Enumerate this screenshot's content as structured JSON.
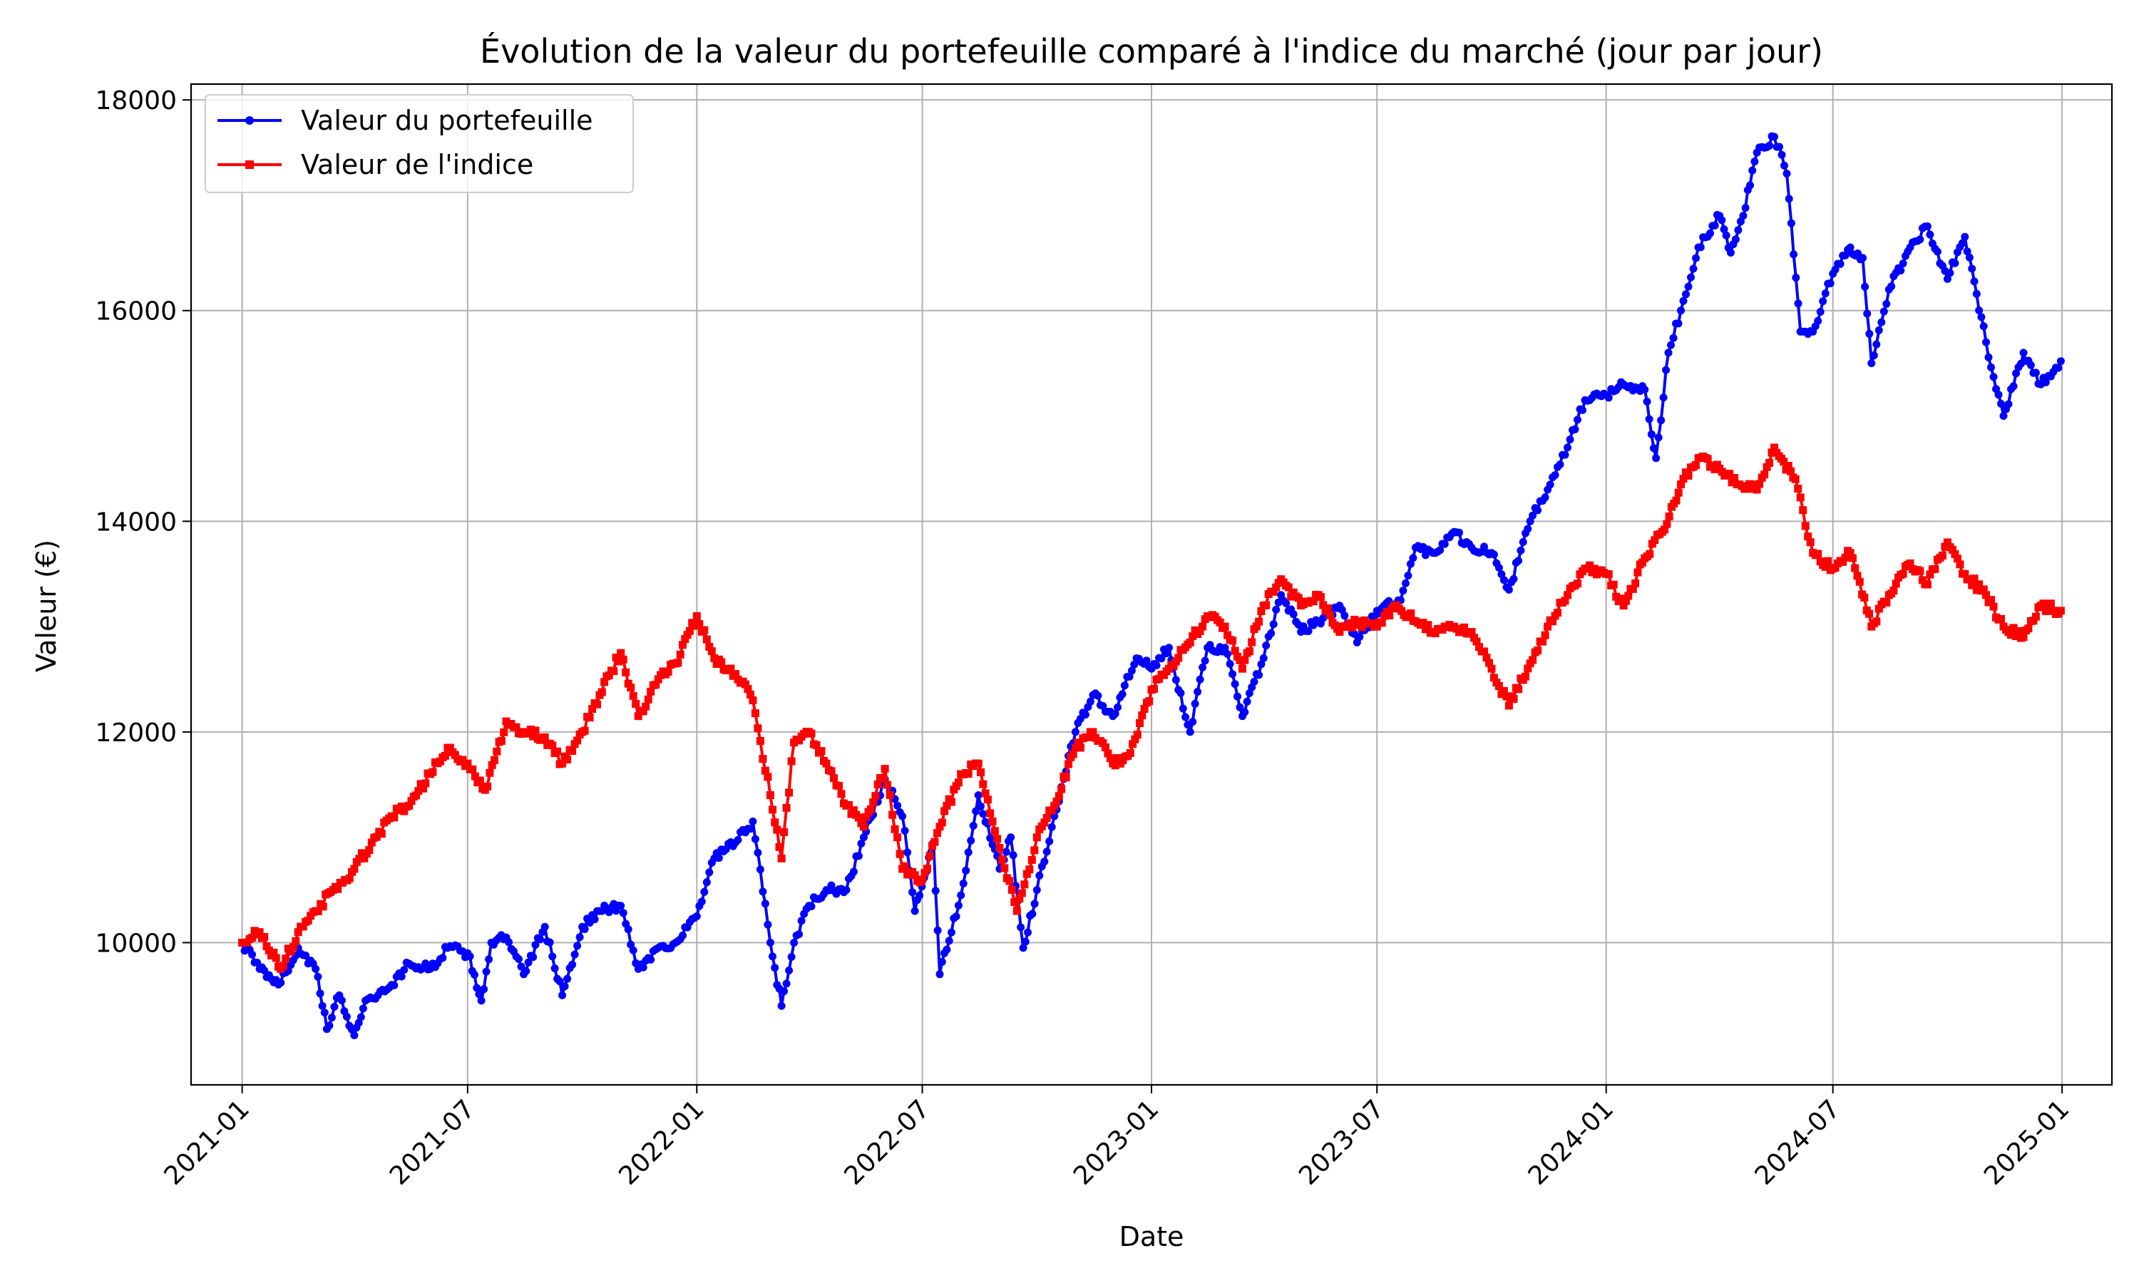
{
  "chart_data": {
    "type": "line",
    "title": "Évolution de la valeur du portefeuille comparé à l'indice du marché (jour par jour)",
    "xlabel": "Date",
    "ylabel": "Valeur (€)",
    "xlim": [
      "2020-11-21",
      "2025-02-10"
    ],
    "ylim": [
      8650,
      18150
    ],
    "grid": true,
    "legend_position": "top-left",
    "x_ticks": [
      "2021-01",
      "2021-07",
      "2022-01",
      "2022-07",
      "2023-01",
      "2023-07",
      "2024-01",
      "2024-07",
      "2025-01"
    ],
    "y_ticks": [
      10000,
      12000,
      14000,
      16000,
      18000
    ],
    "series": [
      {
        "name": "Valeur du portefeuille",
        "color": "#0000ff",
        "marker": "circle",
        "points": [
          [
            "2021-01-01",
            10000
          ],
          [
            "2021-01-15",
            9750
          ],
          [
            "2021-02-01",
            9620
          ],
          [
            "2021-02-15",
            9950
          ],
          [
            "2021-03-01",
            9750
          ],
          [
            "2021-03-10",
            9180
          ],
          [
            "2021-03-20",
            9500
          ],
          [
            "2021-04-01",
            9120
          ],
          [
            "2021-04-10",
            9450
          ],
          [
            "2021-04-20",
            9500
          ],
          [
            "2021-05-01",
            9600
          ],
          [
            "2021-05-15",
            9800
          ],
          [
            "2021-06-01",
            9750
          ],
          [
            "2021-06-15",
            9950
          ],
          [
            "2021-07-01",
            9900
          ],
          [
            "2021-07-12",
            9450
          ],
          [
            "2021-07-20",
            10000
          ],
          [
            "2021-08-01",
            10050
          ],
          [
            "2021-08-15",
            9700
          ],
          [
            "2021-09-01",
            10150
          ],
          [
            "2021-09-15",
            9500
          ],
          [
            "2021-10-01",
            10150
          ],
          [
            "2021-10-15",
            10300
          ],
          [
            "2021-11-01",
            10350
          ],
          [
            "2021-11-15",
            9750
          ],
          [
            "2021-12-01",
            9950
          ],
          [
            "2021-12-15",
            10000
          ],
          [
            "2022-01-01",
            10250
          ],
          [
            "2022-01-15",
            10800
          ],
          [
            "2022-02-01",
            10950
          ],
          [
            "2022-02-15",
            11150
          ],
          [
            "2022-03-01",
            10000
          ],
          [
            "2022-03-10",
            9400
          ],
          [
            "2022-03-20",
            10000
          ],
          [
            "2022-04-01",
            10350
          ],
          [
            "2022-04-15",
            10500
          ],
          [
            "2022-05-01",
            10500
          ],
          [
            "2022-05-15",
            11000
          ],
          [
            "2022-06-01",
            11550
          ],
          [
            "2022-06-15",
            11200
          ],
          [
            "2022-06-25",
            10300
          ],
          [
            "2022-07-10",
            10950
          ],
          [
            "2022-07-15",
            9700
          ],
          [
            "2022-08-01",
            10450
          ],
          [
            "2022-08-15",
            11400
          ],
          [
            "2022-09-01",
            10700
          ],
          [
            "2022-09-10",
            11000
          ],
          [
            "2022-09-20",
            9950
          ],
          [
            "2022-10-01",
            10500
          ],
          [
            "2022-10-15",
            11200
          ],
          [
            "2022-11-01",
            12000
          ],
          [
            "2022-11-15",
            12350
          ],
          [
            "2022-12-01",
            12150
          ],
          [
            "2022-12-20",
            12700
          ],
          [
            "2023-01-01",
            12600
          ],
          [
            "2023-01-15",
            12800
          ],
          [
            "2023-02-01",
            12000
          ],
          [
            "2023-02-15",
            12800
          ],
          [
            "2023-03-01",
            12800
          ],
          [
            "2023-03-15",
            12150
          ],
          [
            "2023-04-01",
            12700
          ],
          [
            "2023-04-15",
            13300
          ],
          [
            "2023-05-01",
            12950
          ],
          [
            "2023-05-15",
            13050
          ],
          [
            "2023-06-01",
            13200
          ],
          [
            "2023-06-15",
            12850
          ],
          [
            "2023-07-01",
            13150
          ],
          [
            "2023-07-20",
            13250
          ],
          [
            "2023-08-01",
            13750
          ],
          [
            "2023-08-15",
            13700
          ],
          [
            "2023-09-01",
            13900
          ],
          [
            "2023-09-15",
            13750
          ],
          [
            "2023-10-01",
            13700
          ],
          [
            "2023-10-15",
            13350
          ],
          [
            "2023-11-01",
            14000
          ],
          [
            "2023-11-15",
            14300
          ],
          [
            "2023-12-01",
            14700
          ],
          [
            "2023-12-15",
            15150
          ],
          [
            "2024-01-01",
            15200
          ],
          [
            "2024-01-15",
            15300
          ],
          [
            "2024-02-01",
            15250
          ],
          [
            "2024-02-10",
            14600
          ],
          [
            "2024-02-20",
            15600
          ],
          [
            "2024-03-01",
            16000
          ],
          [
            "2024-03-15",
            16600
          ],
          [
            "2024-04-01",
            16900
          ],
          [
            "2024-04-10",
            16550
          ],
          [
            "2024-04-20",
            16900
          ],
          [
            "2024-05-01",
            17500
          ],
          [
            "2024-05-15",
            17650
          ],
          [
            "2024-05-25",
            17300
          ],
          [
            "2024-06-05",
            15800
          ],
          [
            "2024-06-15",
            15800
          ],
          [
            "2024-07-01",
            16350
          ],
          [
            "2024-07-15",
            16600
          ],
          [
            "2024-07-25",
            16500
          ],
          [
            "2024-08-01",
            15500
          ],
          [
            "2024-08-15",
            16200
          ],
          [
            "2024-09-01",
            16600
          ],
          [
            "2024-09-15",
            16800
          ],
          [
            "2024-10-01",
            16300
          ],
          [
            "2024-10-15",
            16700
          ],
          [
            "2024-11-01",
            15700
          ],
          [
            "2024-11-15",
            15000
          ],
          [
            "2024-12-01",
            15600
          ],
          [
            "2024-12-15",
            15300
          ],
          [
            "2024-12-31",
            15520
          ]
        ]
      },
      {
        "name": "Valeur de l'indice",
        "color": "#ff0000",
        "marker": "square",
        "points": [
          [
            "2021-01-01",
            10000
          ],
          [
            "2021-01-15",
            10100
          ],
          [
            "2021-02-01",
            9750
          ],
          [
            "2021-02-15",
            10100
          ],
          [
            "2021-03-01",
            10300
          ],
          [
            "2021-03-15",
            10500
          ],
          [
            "2021-04-01",
            10700
          ],
          [
            "2021-04-15",
            10950
          ],
          [
            "2021-05-01",
            11200
          ],
          [
            "2021-05-15",
            11300
          ],
          [
            "2021-06-01",
            11600
          ],
          [
            "2021-06-15",
            11850
          ],
          [
            "2021-07-01",
            11700
          ],
          [
            "2021-07-15",
            11450
          ],
          [
            "2021-08-01",
            12100
          ],
          [
            "2021-08-15",
            12000
          ],
          [
            "2021-09-01",
            11950
          ],
          [
            "2021-09-15",
            11700
          ],
          [
            "2021-10-01",
            12000
          ],
          [
            "2021-10-15",
            12350
          ],
          [
            "2021-11-01",
            12750
          ],
          [
            "2021-11-15",
            12150
          ],
          [
            "2021-12-01",
            12500
          ],
          [
            "2021-12-15",
            12650
          ],
          [
            "2022-01-01",
            13100
          ],
          [
            "2022-01-15",
            12700
          ],
          [
            "2022-02-01",
            12550
          ],
          [
            "2022-02-15",
            12300
          ],
          [
            "2022-03-01",
            11400
          ],
          [
            "2022-03-10",
            10800
          ],
          [
            "2022-03-20",
            11900
          ],
          [
            "2022-04-01",
            12000
          ],
          [
            "2022-04-15",
            11700
          ],
          [
            "2022-05-01",
            11300
          ],
          [
            "2022-05-15",
            11100
          ],
          [
            "2022-06-01",
            11650
          ],
          [
            "2022-06-15",
            10700
          ],
          [
            "2022-07-01",
            10600
          ],
          [
            "2022-07-15",
            11100
          ],
          [
            "2022-08-01",
            11600
          ],
          [
            "2022-08-15",
            11700
          ],
          [
            "2022-09-01",
            10900
          ],
          [
            "2022-09-15",
            10300
          ],
          [
            "2022-10-01",
            11000
          ],
          [
            "2022-10-15",
            11300
          ],
          [
            "2022-11-01",
            11850
          ],
          [
            "2022-11-15",
            12000
          ],
          [
            "2022-12-01",
            11700
          ],
          [
            "2022-12-15",
            11800
          ],
          [
            "2023-01-01",
            12400
          ],
          [
            "2023-01-15",
            12600
          ],
          [
            "2023-02-01",
            12850
          ],
          [
            "2023-02-15",
            13100
          ],
          [
            "2023-03-01",
            13000
          ],
          [
            "2023-03-15",
            12600
          ],
          [
            "2023-04-01",
            13200
          ],
          [
            "2023-04-15",
            13450
          ],
          [
            "2023-05-01",
            13200
          ],
          [
            "2023-05-15",
            13300
          ],
          [
            "2023-06-01",
            12950
          ],
          [
            "2023-06-15",
            13050
          ],
          [
            "2023-07-01",
            13000
          ],
          [
            "2023-07-15",
            13200
          ],
          [
            "2023-08-01",
            13050
          ],
          [
            "2023-08-15",
            12950
          ],
          [
            "2023-09-01",
            13000
          ],
          [
            "2023-09-15",
            12950
          ],
          [
            "2023-10-01",
            12600
          ],
          [
            "2023-10-15",
            12250
          ],
          [
            "2023-11-01",
            12650
          ],
          [
            "2023-11-15",
            13000
          ],
          [
            "2023-12-01",
            13300
          ],
          [
            "2023-12-15",
            13550
          ],
          [
            "2024-01-01",
            13500
          ],
          [
            "2024-01-15",
            13200
          ],
          [
            "2024-02-01",
            13650
          ],
          [
            "2024-02-15",
            13900
          ],
          [
            "2024-03-01",
            14350
          ],
          [
            "2024-03-15",
            14600
          ],
          [
            "2024-04-01",
            14500
          ],
          [
            "2024-04-15",
            14350
          ],
          [
            "2024-05-01",
            14300
          ],
          [
            "2024-05-15",
            14700
          ],
          [
            "2024-06-01",
            14400
          ],
          [
            "2024-06-15",
            13700
          ],
          [
            "2024-07-01",
            13550
          ],
          [
            "2024-07-15",
            13700
          ],
          [
            "2024-08-01",
            13000
          ],
          [
            "2024-08-15",
            13300
          ],
          [
            "2024-09-01",
            13600
          ],
          [
            "2024-09-15",
            13400
          ],
          [
            "2024-10-01",
            13800
          ],
          [
            "2024-10-15",
            13500
          ],
          [
            "2024-11-01",
            13300
          ],
          [
            "2024-11-15",
            13000
          ],
          [
            "2024-12-01",
            12900
          ],
          [
            "2024-12-15",
            13200
          ],
          [
            "2024-12-31",
            13150
          ]
        ]
      }
    ]
  }
}
